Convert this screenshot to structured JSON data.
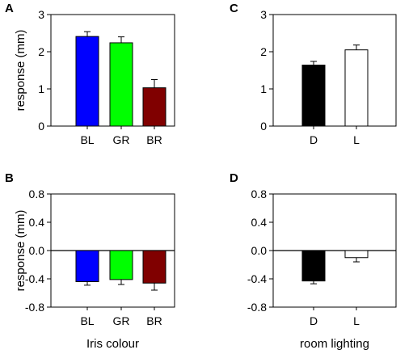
{
  "chart_data": [
    {
      "panel": "A",
      "type": "bar",
      "categories": [
        "BL",
        "GR",
        "BR"
      ],
      "values": [
        2.41,
        2.24,
        1.03
      ],
      "errors": [
        0.13,
        0.16,
        0.22
      ],
      "bar_colors": [
        "#0000ff",
        "#00ff00",
        "#800000"
      ],
      "ylabel": "response (mm)",
      "xlabel": "",
      "ylim": [
        0,
        3
      ],
      "yticks": [
        "0",
        "1",
        "2",
        "3"
      ]
    },
    {
      "panel": "C",
      "type": "bar",
      "categories": [
        "D",
        "L"
      ],
      "values": [
        1.64,
        2.05
      ],
      "errors": [
        0.1,
        0.13
      ],
      "bar_colors": [
        "#000000",
        "#ffffff"
      ],
      "ylabel": "",
      "xlabel": "",
      "ylim": [
        0,
        3
      ],
      "yticks": [
        "0",
        "1",
        "2",
        "3"
      ]
    },
    {
      "panel": "B",
      "type": "bar",
      "categories": [
        "BL",
        "GR",
        "BR"
      ],
      "values": [
        -0.44,
        -0.41,
        -0.46
      ],
      "errors": [
        0.05,
        0.07,
        0.1
      ],
      "bar_colors": [
        "#0000ff",
        "#00ff00",
        "#800000"
      ],
      "ylabel": "response (mm)",
      "xlabel": "Iris colour",
      "ylim": [
        -0.8,
        0.8
      ],
      "yticks": [
        "-0.8",
        "-0.4",
        "0.0",
        "0.4",
        "0.8"
      ]
    },
    {
      "panel": "D",
      "type": "bar",
      "categories": [
        "D",
        "L"
      ],
      "values": [
        -0.43,
        -0.1
      ],
      "errors": [
        0.04,
        0.06
      ],
      "bar_colors": [
        "#000000",
        "#ffffff"
      ],
      "ylabel": "",
      "xlabel": "room lighting",
      "ylim": [
        -0.8,
        0.8
      ],
      "yticks": [
        "-0.8",
        "-0.4",
        "0.0",
        "0.4",
        "0.8"
      ]
    }
  ]
}
